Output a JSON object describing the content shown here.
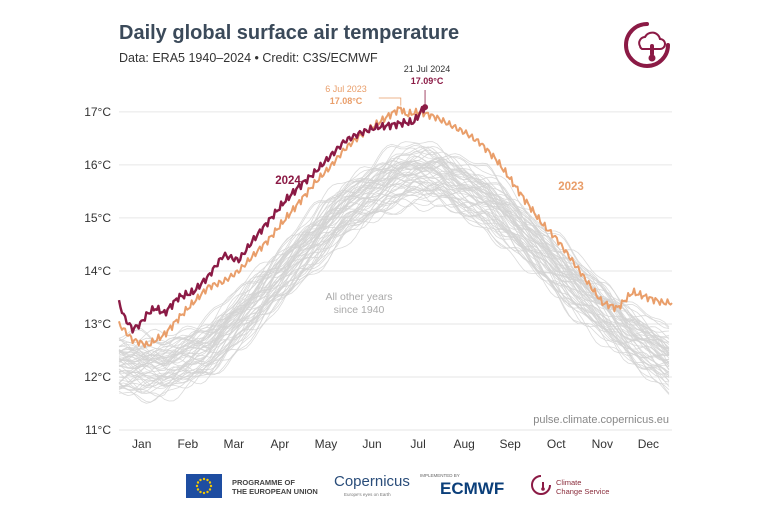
{
  "chart_data": {
    "type": "line",
    "title": "Daily global surface air temperature",
    "subtitle": "Data: ERA5 1940–2024 • Credit: C3S/ECMWF",
    "y_ticks": [
      "11°C",
      "12°C",
      "13°C",
      "14°C",
      "15°C",
      "16°C",
      "17°C"
    ],
    "ylim": [
      11,
      17.3
    ],
    "x_ticks": [
      "Jan",
      "Feb",
      "Mar",
      "Apr",
      "May",
      "Jun",
      "Jul",
      "Aug",
      "Sep",
      "Oct",
      "Nov",
      "Dec"
    ],
    "xlim": [
      1,
      366
    ],
    "grid": true,
    "series": [
      {
        "name": "2024",
        "label": "2024",
        "color": "#8b1a45",
        "x": [
          1,
          5,
          10,
          15,
          20,
          25,
          31,
          40,
          50,
          60,
          70,
          80,
          90,
          100,
          110,
          120,
          130,
          140,
          150,
          160,
          170,
          180,
          190,
          195,
          198,
          200,
          203
        ],
        "y": [
          13.4,
          13.1,
          12.9,
          13.0,
          13.2,
          13.3,
          13.2,
          13.5,
          13.6,
          13.9,
          14.3,
          14.2,
          14.6,
          14.95,
          15.3,
          15.6,
          15.85,
          16.15,
          16.45,
          16.6,
          16.7,
          16.75,
          16.8,
          16.8,
          16.9,
          17.0,
          17.09
        ]
      },
      {
        "name": "2023",
        "label": "2023",
        "color": "#e99e6a",
        "x": [
          1,
          10,
          20,
          31,
          40,
          50,
          60,
          70,
          80,
          90,
          100,
          110,
          120,
          130,
          140,
          150,
          160,
          170,
          180,
          187,
          190,
          200,
          210,
          220,
          230,
          240,
          250,
          260,
          270,
          280,
          290,
          300,
          310,
          320,
          330,
          340,
          350,
          355,
          360,
          366
        ],
        "y": [
          13.0,
          12.7,
          12.6,
          12.8,
          13.1,
          13.4,
          13.7,
          13.8,
          14.0,
          14.3,
          14.6,
          14.95,
          15.3,
          15.65,
          15.95,
          16.3,
          16.55,
          16.75,
          16.95,
          17.08,
          16.95,
          17.0,
          16.9,
          16.75,
          16.6,
          16.4,
          16.1,
          15.7,
          15.3,
          14.9,
          14.6,
          14.2,
          13.8,
          13.4,
          13.3,
          13.6,
          13.5,
          13.45,
          13.4,
          13.4
        ]
      },
      {
        "name": "All other years since 1940",
        "color": "#d4d4d4",
        "x": [
          1,
          31,
          60,
          91,
          121,
          152,
          182,
          196,
          213,
          244,
          274,
          305,
          335,
          366
        ],
        "y": [
          12.25,
          12.2,
          12.55,
          13.4,
          14.35,
          15.2,
          15.75,
          15.85,
          15.8,
          15.35,
          14.55,
          13.65,
          12.9,
          12.3
        ],
        "spread": 0.55,
        "count": 60
      }
    ],
    "annotations": {
      "peak_2024_date": "21 Jul 2024",
      "peak_2024_value": "17.09°C",
      "peak_2023_date": "6 Jul 2023",
      "peak_2023_value": "17.08°C",
      "other_years_line1": "All other years",
      "other_years_line2": "since 1940",
      "source": "pulse.climate.copernicus.eu"
    }
  },
  "footer": {
    "programme_line1": "PROGRAMME OF",
    "programme_line2": "THE EUROPEAN UNION",
    "copernicus": "Copernicus",
    "copernicus_sub": "Europe's eyes on Earth",
    "implemented_by": "IMPLEMENTED BY",
    "ecmwf": "ECMWF",
    "c3s_line1": "Climate",
    "c3s_line2": "Change Service"
  },
  "colors": {
    "title": "#3b4a5a",
    "accent_2024": "#8b1a45",
    "accent_2023": "#e99e6a",
    "others": "#d4d4d4"
  }
}
